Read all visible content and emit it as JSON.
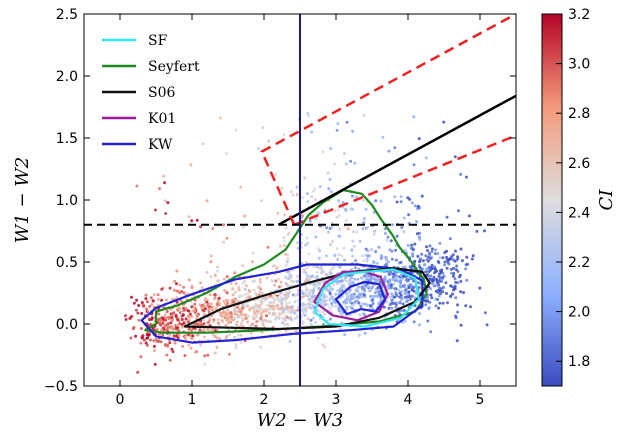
{
  "chart_data": {
    "type": "scatter",
    "xlabel": "W2 − W3",
    "ylabel": "W1 − W2",
    "xlim": [
      -0.5,
      5.5
    ],
    "ylim": [
      -0.5,
      2.5
    ],
    "xticks": [
      0,
      1,
      2,
      3,
      4,
      5
    ],
    "yticks": [
      -0.5,
      0.0,
      0.5,
      1.0,
      1.5,
      2.0,
      2.5
    ],
    "colorbar": {
      "label": "CI",
      "range": [
        1.7,
        3.2
      ],
      "ticks": [
        1.8,
        2.0,
        2.2,
        2.4,
        2.6,
        2.8,
        3.0,
        3.2
      ],
      "colormap": "coolwarm"
    },
    "legend": {
      "placement": "top-left",
      "entries": [
        {
          "name": "SF",
          "color": "#33e6f0"
        },
        {
          "name": "Seyfert",
          "color": "#1f8a1f"
        },
        {
          "name": "S06",
          "color": "#111111"
        },
        {
          "name": "K01",
          "color": "#9b1f9b"
        },
        {
          "name": "KW",
          "color": "#2323d6"
        }
      ]
    },
    "reference_lines": [
      {
        "type": "horizontal",
        "y": 0.8,
        "style": "dashed",
        "color": "#000000"
      },
      {
        "type": "vertical",
        "x": 2.5,
        "style": "solid",
        "color": "#1b1b8a"
      }
    ],
    "lines": [
      {
        "name": "S06",
        "color": "#000000",
        "style": "solid",
        "points": [
          [
            2.2,
            0.8
          ],
          [
            5.5,
            1.84
          ]
        ]
      },
      {
        "name": "dashed-boundary",
        "color": "#ee2222",
        "style": "dashed",
        "points": [
          [
            2.42,
            0.8
          ],
          [
            1.97,
            1.39
          ],
          [
            5.5,
            2.5
          ]
        ]
      },
      {
        "name": "dashed-boundary-lower",
        "color": "#ee2222",
        "style": "dashed",
        "points": [
          [
            2.42,
            0.8
          ],
          [
            5.5,
            1.52
          ]
        ]
      }
    ],
    "contours": [
      {
        "name": "Seyfert",
        "color": "#1f8a1f",
        "points": [
          [
            0.35,
            -0.05
          ],
          [
            0.5,
            0.0
          ],
          [
            0.5,
            0.1
          ],
          [
            0.8,
            0.15
          ],
          [
            1.2,
            0.25
          ],
          [
            1.6,
            0.38
          ],
          [
            2.0,
            0.48
          ],
          [
            2.3,
            0.6
          ],
          [
            2.45,
            0.73
          ],
          [
            2.62,
            0.88
          ],
          [
            2.82,
            0.98
          ],
          [
            3.1,
            1.08
          ],
          [
            3.36,
            1.05
          ],
          [
            3.5,
            0.96
          ],
          [
            3.62,
            0.85
          ],
          [
            3.78,
            0.72
          ],
          [
            3.88,
            0.62
          ],
          [
            3.97,
            0.56
          ],
          [
            4.05,
            0.5
          ],
          [
            4.12,
            0.44
          ],
          [
            4.22,
            0.36
          ],
          [
            4.26,
            0.24
          ],
          [
            4.1,
            0.1
          ],
          [
            3.6,
            0.02
          ],
          [
            2.8,
            -0.02
          ],
          [
            2.0,
            -0.05
          ],
          [
            1.2,
            -0.07
          ],
          [
            0.6,
            -0.07
          ],
          [
            0.35,
            -0.05
          ]
        ]
      },
      {
        "name": "KW",
        "color": "#2323d6",
        "points": [
          [
            0.3,
            0.03
          ],
          [
            0.5,
            0.13
          ],
          [
            1.0,
            0.24
          ],
          [
            1.6,
            0.36
          ],
          [
            2.2,
            0.42
          ],
          [
            2.6,
            0.48
          ],
          [
            3.3,
            0.48
          ],
          [
            3.9,
            0.44
          ],
          [
            4.2,
            0.35
          ],
          [
            4.2,
            0.15
          ],
          [
            3.8,
            -0.02
          ],
          [
            3.2,
            -0.05
          ],
          [
            2.4,
            -0.08
          ],
          [
            1.6,
            -0.13
          ],
          [
            1.0,
            -0.15
          ],
          [
            0.5,
            -0.1
          ],
          [
            0.3,
            0.03
          ]
        ]
      },
      {
        "name": "S06",
        "color": "#111111",
        "points": [
          [
            0.9,
            -0.02
          ],
          [
            1.4,
            0.12
          ],
          [
            2.0,
            0.23
          ],
          [
            2.6,
            0.33
          ],
          [
            3.2,
            0.42
          ],
          [
            3.8,
            0.45
          ],
          [
            4.2,
            0.42
          ],
          [
            4.3,
            0.33
          ],
          [
            4.1,
            0.18
          ],
          [
            3.6,
            0.05
          ],
          [
            3.0,
            -0.02
          ],
          [
            2.2,
            -0.04
          ],
          [
            1.5,
            -0.03
          ],
          [
            0.9,
            -0.02
          ]
        ]
      },
      {
        "name": "K01",
        "color": "#9b1f9b",
        "points": [
          [
            2.7,
            0.18
          ],
          [
            2.85,
            0.33
          ],
          [
            3.1,
            0.42
          ],
          [
            3.4,
            0.42
          ],
          [
            3.62,
            0.38
          ],
          [
            3.72,
            0.24
          ],
          [
            3.6,
            0.1
          ],
          [
            3.3,
            0.03
          ],
          [
            2.95,
            0.07
          ],
          [
            2.7,
            0.18
          ]
        ]
      },
      {
        "name": "SF",
        "color": "#33e6f0",
        "points": [
          [
            2.7,
            0.1
          ],
          [
            2.82,
            0.28
          ],
          [
            3.1,
            0.4
          ],
          [
            3.4,
            0.42
          ],
          [
            3.8,
            0.44
          ],
          [
            4.1,
            0.37
          ],
          [
            4.15,
            0.2
          ],
          [
            3.9,
            0.05
          ],
          [
            3.4,
            -0.02
          ],
          [
            2.9,
            0.0
          ],
          [
            2.7,
            0.1
          ]
        ]
      },
      {
        "name": "KW-inner",
        "color": "#2323d6",
        "points": [
          [
            3.0,
            0.2
          ],
          [
            3.2,
            0.3
          ],
          [
            3.4,
            0.34
          ],
          [
            3.6,
            0.32
          ],
          [
            3.68,
            0.2
          ],
          [
            3.55,
            0.1
          ],
          [
            3.35,
            0.12
          ],
          [
            3.15,
            0.08
          ],
          [
            3.0,
            0.2
          ]
        ]
      }
    ],
    "scatter": {
      "count": 2200,
      "description_hidden": true
    }
  }
}
